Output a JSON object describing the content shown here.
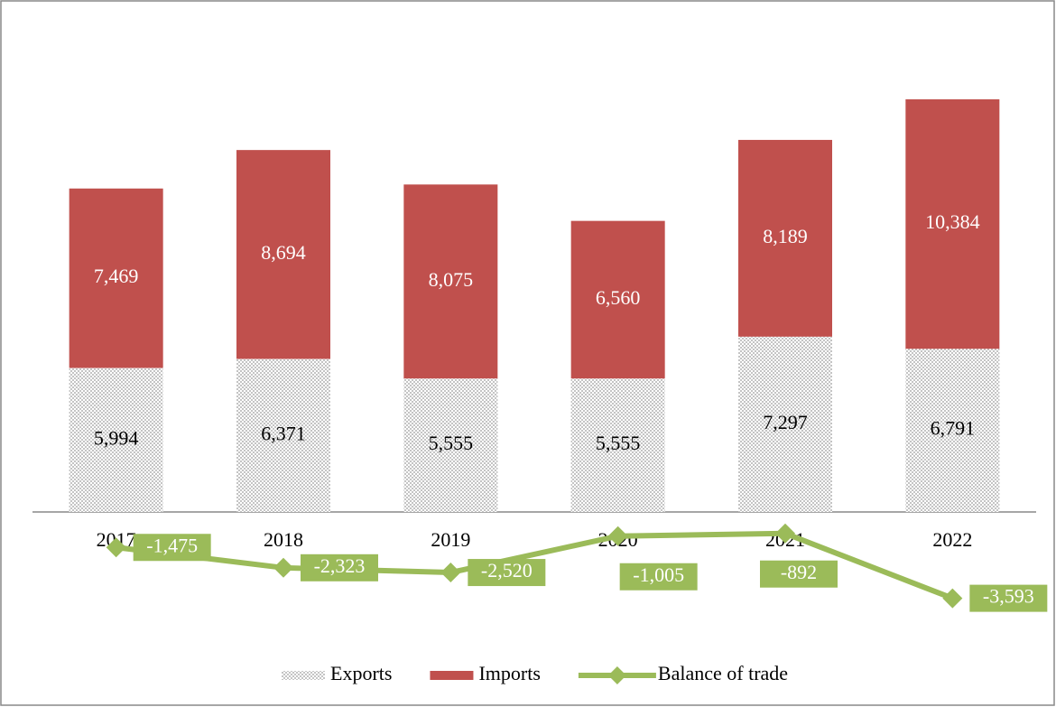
{
  "chart_data": {
    "type": "bar",
    "stacked": true,
    "categories": [
      "2017",
      "2018",
      "2019",
      "2020",
      "2021",
      "2022"
    ],
    "series": [
      {
        "name": "Exports",
        "type": "bar",
        "color": "#bfbfbf",
        "pattern": "dotted",
        "values": [
          5994,
          6371,
          5555,
          5555,
          7297,
          6791
        ],
        "value_labels": [
          "5,994",
          "6,371",
          "5,555",
          "5,555",
          "7,297",
          "6,791"
        ]
      },
      {
        "name": "Imports",
        "type": "bar",
        "color": "#c0504d",
        "values": [
          7469,
          8694,
          8075,
          6560,
          8189,
          10384
        ],
        "value_labels": [
          "7,469",
          "8,694",
          "8,075",
          "6,560",
          "8,189",
          "10,384"
        ]
      },
      {
        "name": "Balance of trade",
        "type": "line",
        "color": "#9bbb59",
        "marker": "diamond",
        "values": [
          -1475,
          -2323,
          -2520,
          -1005,
          -892,
          -3593
        ],
        "value_labels": [
          "-1,475",
          "-2,323",
          "-2,520",
          "-1,005",
          "-892",
          "-3,593"
        ]
      }
    ],
    "legend": "bottom"
  }
}
